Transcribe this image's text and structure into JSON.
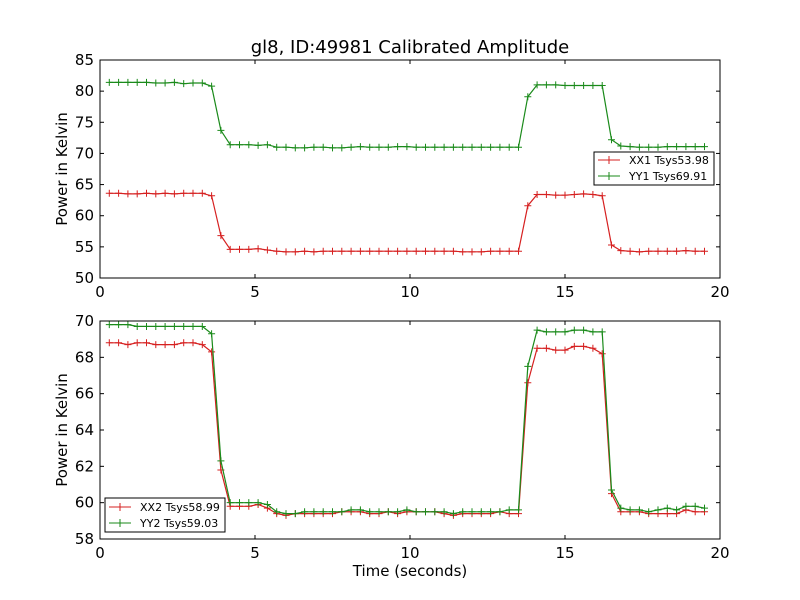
{
  "chart_data": [
    {
      "type": "line",
      "title": "gl8, ID:49981 Calibrated Amplitude",
      "xlabel": "",
      "ylabel": "Power in Kelvin",
      "xlim": [
        0,
        20
      ],
      "ylim": [
        50,
        85
      ],
      "xticks": [
        "0",
        "5",
        "10",
        "15",
        "20"
      ],
      "yticks": [
        "50",
        "55",
        "60",
        "65",
        "70",
        "75",
        "80",
        "85"
      ],
      "xtick_values": [
        0,
        5,
        10,
        15,
        20
      ],
      "ytick_values": [
        50,
        55,
        60,
        65,
        70,
        75,
        80,
        85
      ],
      "grid": false,
      "legend_position": "center-right",
      "x": [
        0.3,
        0.6,
        0.9,
        1.2,
        1.5,
        1.8,
        2.1,
        2.4,
        2.7,
        3.0,
        3.3,
        3.6,
        3.9,
        4.2,
        4.5,
        4.8,
        5.1,
        5.4,
        5.7,
        6.0,
        6.3,
        6.6,
        6.9,
        7.2,
        7.5,
        7.8,
        8.1,
        8.4,
        8.7,
        9.0,
        9.3,
        9.6,
        9.9,
        10.2,
        10.5,
        10.8,
        11.1,
        11.4,
        11.7,
        12.0,
        12.3,
        12.6,
        12.9,
        13.2,
        13.5,
        13.8,
        14.1,
        14.4,
        14.7,
        15.0,
        15.3,
        15.6,
        15.9,
        16.2,
        16.5,
        16.8,
        17.1,
        17.4,
        17.7,
        18.0,
        18.3,
        18.6,
        18.9,
        19.2,
        19.5
      ],
      "series": [
        {
          "name": "XX1 Tsys53.98",
          "color": "#d62020",
          "values": [
            63.6,
            63.6,
            63.5,
            63.5,
            63.6,
            63.5,
            63.6,
            63.5,
            63.6,
            63.6,
            63.6,
            63.2,
            56.8,
            54.6,
            54.6,
            54.6,
            54.7,
            54.5,
            54.3,
            54.2,
            54.2,
            54.3,
            54.2,
            54.3,
            54.3,
            54.3,
            54.3,
            54.3,
            54.3,
            54.3,
            54.3,
            54.3,
            54.3,
            54.3,
            54.3,
            54.3,
            54.3,
            54.3,
            54.2,
            54.2,
            54.2,
            54.3,
            54.3,
            54.3,
            54.3,
            61.6,
            63.4,
            63.4,
            63.3,
            63.3,
            63.4,
            63.5,
            63.4,
            63.2,
            55.3,
            54.4,
            54.3,
            54.2,
            54.3,
            54.3,
            54.3,
            54.3,
            54.4,
            54.3,
            54.3
          ]
        },
        {
          "name": "YY1 Tsys69.91",
          "color": "#1a8a1a",
          "values": [
            81.4,
            81.4,
            81.4,
            81.4,
            81.4,
            81.3,
            81.3,
            81.4,
            81.2,
            81.3,
            81.3,
            80.8,
            73.7,
            71.4,
            71.4,
            71.4,
            71.3,
            71.4,
            71.0,
            71.0,
            70.9,
            70.9,
            71.0,
            71.0,
            70.9,
            70.9,
            71.0,
            71.1,
            71.0,
            71.0,
            71.0,
            71.1,
            71.1,
            71.0,
            71.0,
            71.0,
            71.0,
            71.0,
            71.0,
            71.0,
            71.0,
            71.0,
            71.0,
            71.0,
            71.0,
            79.1,
            81.0,
            81.0,
            81.0,
            80.9,
            80.9,
            80.9,
            80.9,
            80.9,
            72.2,
            71.2,
            71.1,
            71.0,
            71.0,
            71.0,
            71.1,
            71.1,
            71.1,
            71.1,
            71.1
          ]
        }
      ]
    },
    {
      "type": "line",
      "title": "",
      "xlabel": "Time (seconds)",
      "ylabel": "Power in Kelvin",
      "xlim": [
        0,
        20
      ],
      "ylim": [
        58,
        70
      ],
      "xticks": [
        "0",
        "5",
        "10",
        "15",
        "20"
      ],
      "yticks": [
        "58",
        "60",
        "62",
        "64",
        "66",
        "68",
        "70"
      ],
      "xtick_values": [
        0,
        5,
        10,
        15,
        20
      ],
      "ytick_values": [
        58,
        60,
        62,
        64,
        66,
        68,
        70
      ],
      "grid": false,
      "legend_position": "lower-left",
      "x": [
        0.3,
        0.6,
        0.9,
        1.2,
        1.5,
        1.8,
        2.1,
        2.4,
        2.7,
        3.0,
        3.3,
        3.6,
        3.9,
        4.2,
        4.5,
        4.8,
        5.1,
        5.4,
        5.7,
        6.0,
        6.3,
        6.6,
        6.9,
        7.2,
        7.5,
        7.8,
        8.1,
        8.4,
        8.7,
        9.0,
        9.3,
        9.6,
        9.9,
        10.2,
        10.5,
        10.8,
        11.1,
        11.4,
        11.7,
        12.0,
        12.3,
        12.6,
        12.9,
        13.2,
        13.5,
        13.8,
        14.1,
        14.4,
        14.7,
        15.0,
        15.3,
        15.6,
        15.9,
        16.2,
        16.5,
        16.8,
        17.1,
        17.4,
        17.7,
        18.0,
        18.3,
        18.6,
        18.9,
        19.2,
        19.5
      ],
      "series": [
        {
          "name": "XX2 Tsys58.99",
          "color": "#d62020",
          "values": [
            68.8,
            68.8,
            68.7,
            68.8,
            68.8,
            68.7,
            68.7,
            68.7,
            68.8,
            68.8,
            68.7,
            68.3,
            61.8,
            59.8,
            59.8,
            59.8,
            59.9,
            59.7,
            59.4,
            59.3,
            59.4,
            59.4,
            59.4,
            59.4,
            59.4,
            59.5,
            59.5,
            59.5,
            59.4,
            59.4,
            59.5,
            59.4,
            59.5,
            59.5,
            59.5,
            59.5,
            59.4,
            59.3,
            59.4,
            59.4,
            59.4,
            59.4,
            59.5,
            59.4,
            59.4,
            66.6,
            68.5,
            68.5,
            68.4,
            68.4,
            68.6,
            68.6,
            68.5,
            68.2,
            60.5,
            59.5,
            59.5,
            59.5,
            59.4,
            59.4,
            59.4,
            59.4,
            59.6,
            59.5,
            59.5
          ]
        },
        {
          "name": "YY2 Tsys59.03",
          "color": "#1a8a1a",
          "values": [
            69.8,
            69.8,
            69.8,
            69.7,
            69.7,
            69.7,
            69.7,
            69.7,
            69.7,
            69.7,
            69.7,
            69.3,
            62.3,
            60.0,
            60.0,
            60.0,
            60.0,
            59.9,
            59.5,
            59.4,
            59.4,
            59.5,
            59.5,
            59.5,
            59.5,
            59.5,
            59.6,
            59.6,
            59.5,
            59.5,
            59.5,
            59.5,
            59.6,
            59.5,
            59.5,
            59.5,
            59.5,
            59.4,
            59.5,
            59.5,
            59.5,
            59.5,
            59.5,
            59.6,
            59.6,
            67.5,
            69.5,
            69.4,
            69.4,
            69.4,
            69.5,
            69.5,
            69.4,
            69.4,
            60.7,
            59.7,
            59.6,
            59.6,
            59.5,
            59.6,
            59.7,
            59.6,
            59.8,
            59.8,
            59.7
          ]
        }
      ]
    }
  ]
}
